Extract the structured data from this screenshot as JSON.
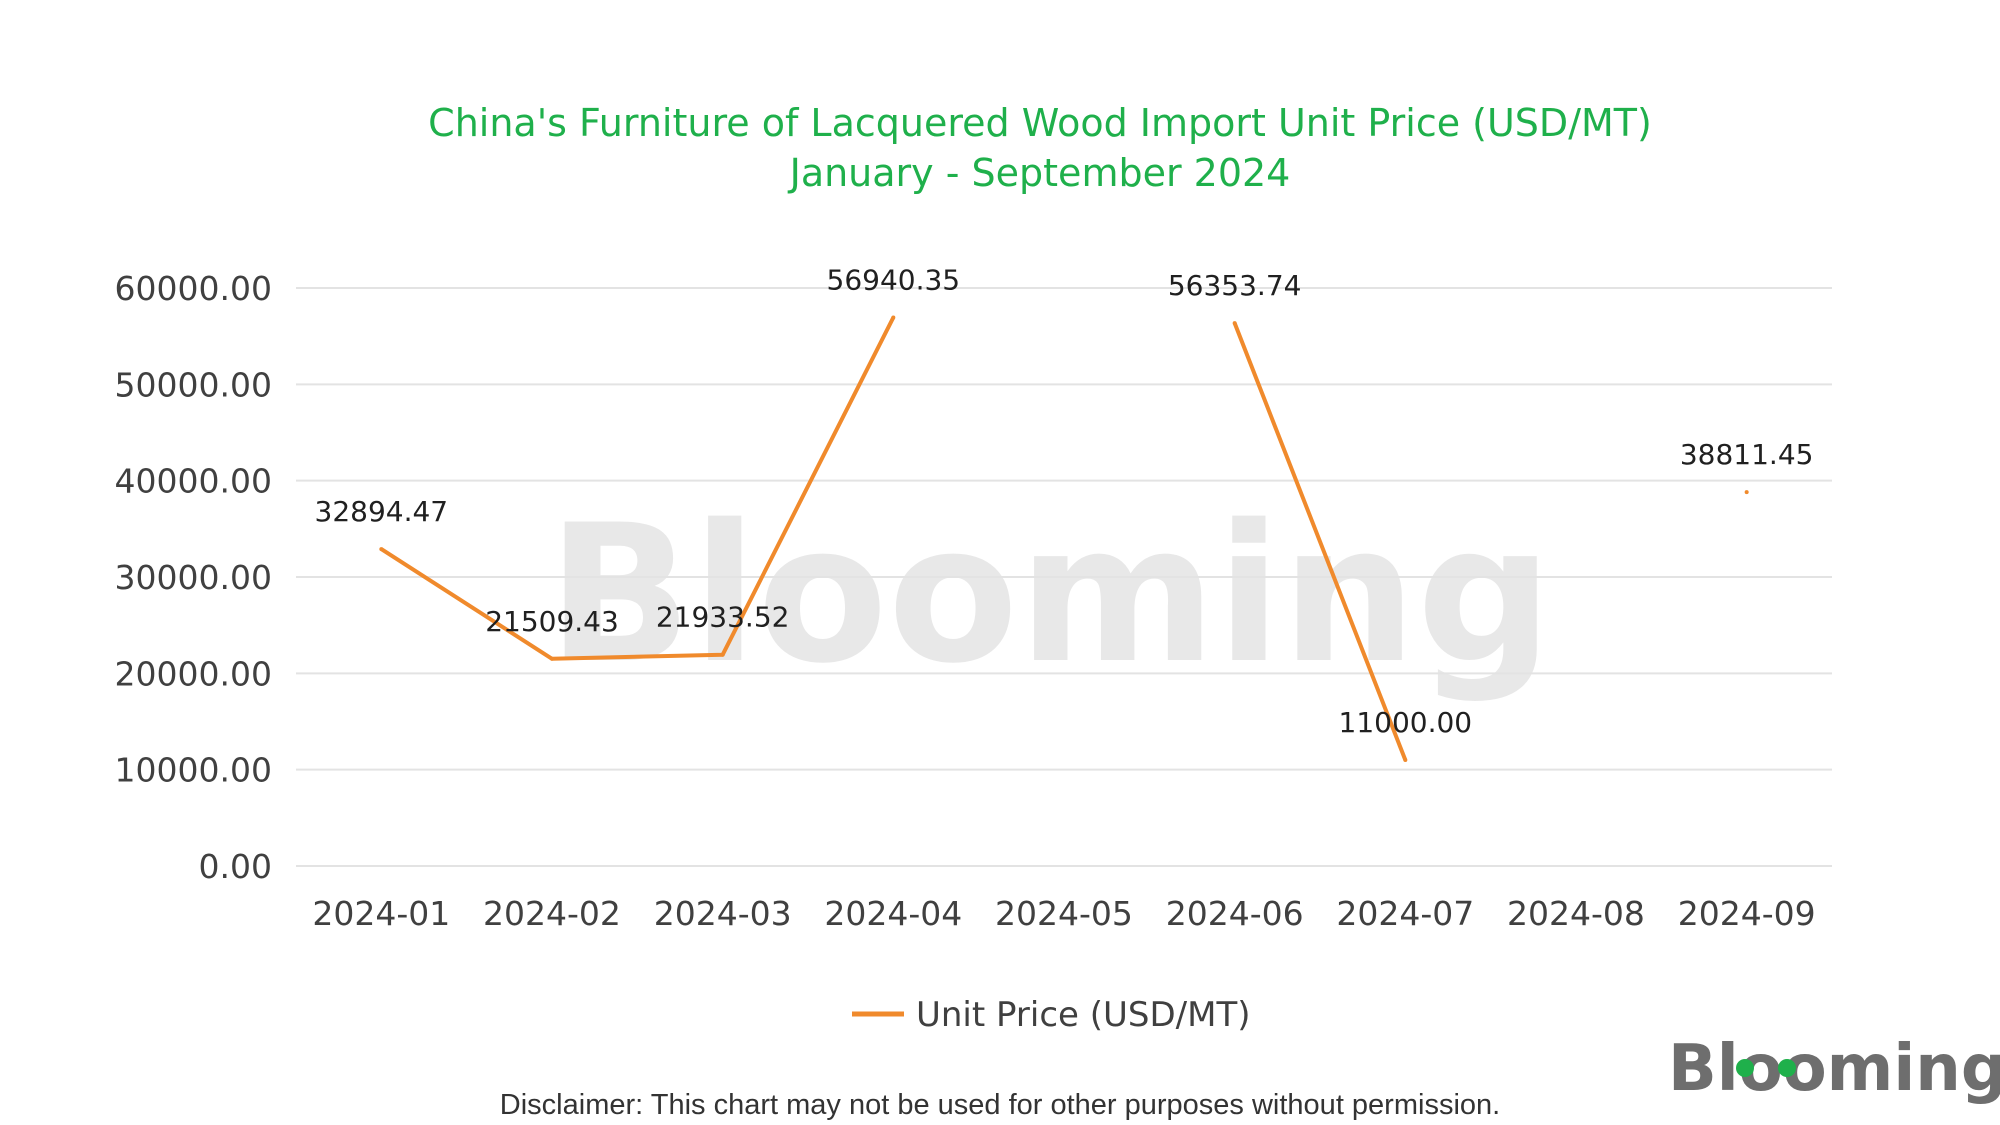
{
  "chart_data": {
    "type": "line",
    "title": "China's Furniture of Lacquered Wood Import Unit Price (USD/MT)",
    "subtitle": "January - September 2024",
    "categories": [
      "2024-01",
      "2024-02",
      "2024-03",
      "2024-04",
      "2024-05",
      "2024-06",
      "2024-07",
      "2024-08",
      "2024-09"
    ],
    "series": [
      {
        "name": "Unit Price (USD/MT)",
        "values": [
          32894.47,
          21509.43,
          21933.52,
          56940.35,
          null,
          56353.74,
          11000.0,
          null,
          38811.45
        ],
        "labels": [
          "32894.47",
          "21509.43",
          "21933.52",
          "56940.35",
          "",
          "56353.74",
          "11000.00",
          "",
          "38811.45"
        ],
        "color": "#f08a2c"
      }
    ],
    "yticks": [
      "0.00",
      "10000.00",
      "20000.00",
      "30000.00",
      "40000.00",
      "50000.00",
      "60000.00"
    ],
    "ylim": [
      0,
      60000
    ],
    "grid": true,
    "legend_position": "bottom-center"
  },
  "watermark": "Blooming",
  "logo": "Blooming",
  "disclaimer": "Disclaimer: This chart may not be used for other purposes without permission.",
  "colors": {
    "title": "#1fb04b",
    "line": "#f08a2c",
    "grid": "#e3e3e3",
    "logo_dot": "#1fb04b"
  }
}
